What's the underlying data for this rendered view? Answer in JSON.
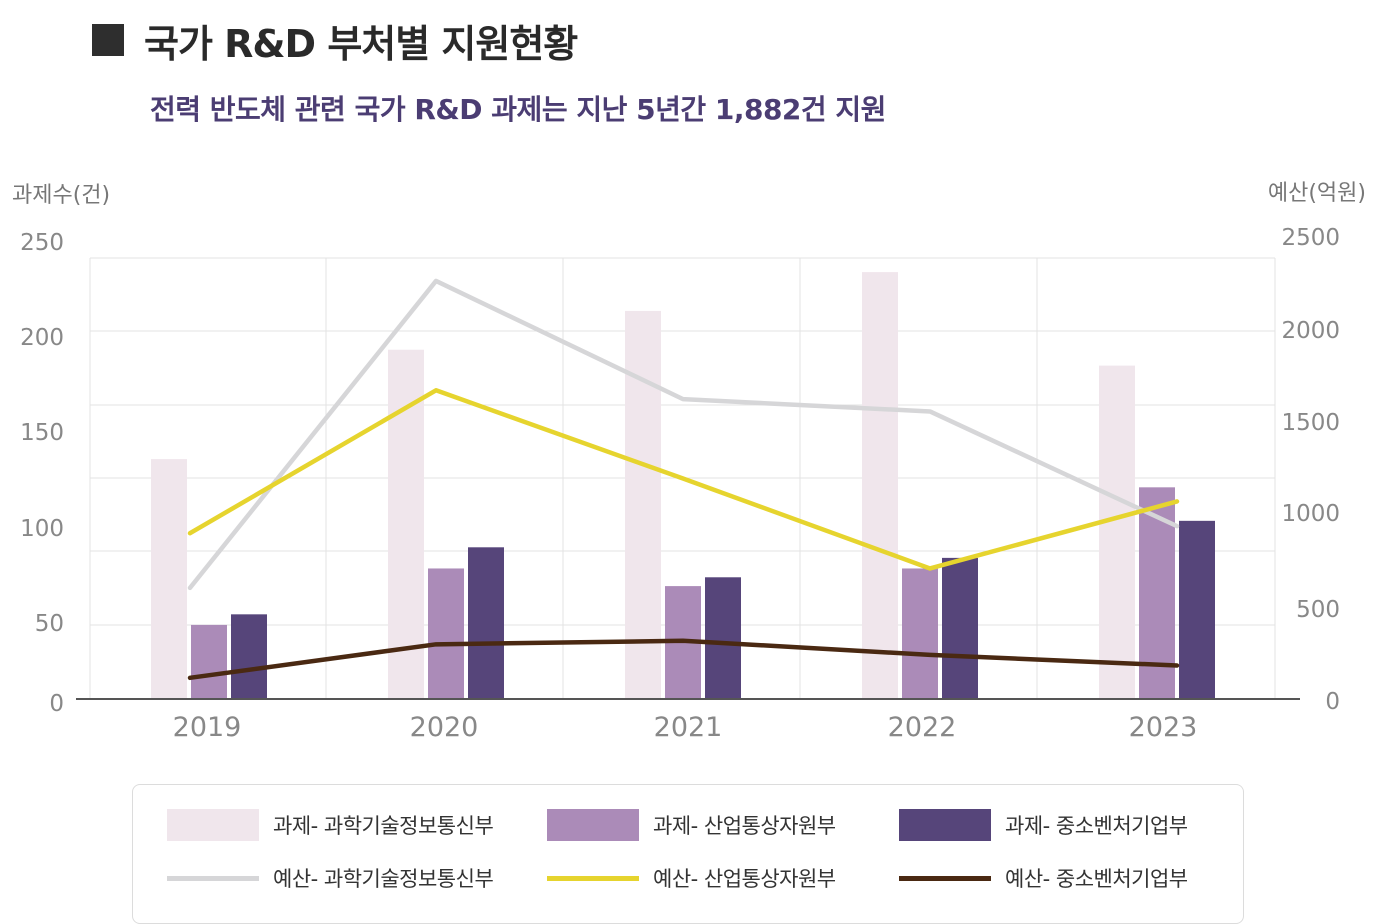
{
  "title": "국가 R&D 부처별 지원현황",
  "subtitle": "전력 반도체 관련 국가 R&D 과제는 지난 5년간 1,882건 지원",
  "chart_data": {
    "type": "bar",
    "combo": "bar+line",
    "categories": [
      "2019",
      "2020",
      "2021",
      "2022",
      "2023"
    ],
    "left_axis": {
      "label": "과제수(건)",
      "ylim": [
        0,
        250
      ],
      "ticks": [
        "0",
        "50",
        "100",
        "150",
        "200",
        "250"
      ]
    },
    "right_axis": {
      "label": "예산(억원)",
      "ylim": [
        0,
        2500
      ],
      "ticks": [
        "0",
        "500",
        "1000",
        "1500",
        "2000",
        "2500"
      ]
    },
    "bar_series": [
      {
        "name": "과제- 과학기술정보통신부",
        "color": "#f0e6ec",
        "values": [
          136,
          198,
          220,
          242,
          189
        ]
      },
      {
        "name": "과제- 산업통상자원부",
        "color": "#ab8bb8",
        "values": [
          42,
          74,
          64,
          74,
          120
        ]
      },
      {
        "name": "과제- 중소벤처기업부",
        "color": "#56457a",
        "values": [
          48,
          86,
          69,
          80,
          101
        ]
      }
    ],
    "line_series": [
      {
        "name": "예산- 과학기술정보통신부",
        "color": "#d6d6d8",
        "values": [
          630,
          2370,
          1700,
          1630,
          980
        ]
      },
      {
        "name": "예산- 산업통상자원부",
        "color": "#e6d42e",
        "values": [
          940,
          1750,
          1250,
          740,
          1120
        ]
      },
      {
        "name": "예산- 중소벤처기업부",
        "color": "#4a2912",
        "values": [
          120,
          310,
          330,
          250,
          190
        ]
      }
    ],
    "grid": true,
    "legend_position": "bottom"
  },
  "legend": [
    {
      "label": "과제- 과학기술정보통신부",
      "kind": "bar",
      "color": "#f0e6ec"
    },
    {
      "label": "과제- 산업통상자원부",
      "kind": "bar",
      "color": "#ab8bb8"
    },
    {
      "label": "과제- 중소벤처기업부",
      "kind": "bar",
      "color": "#56457a"
    },
    {
      "label": "예산- 과학기술정보통신부",
      "kind": "line",
      "color": "#d6d6d8"
    },
    {
      "label": "예산- 산업통상자원부",
      "kind": "line",
      "color": "#e6d42e"
    },
    {
      "label": "예산- 중소벤처기업부",
      "kind": "line",
      "color": "#4a2912"
    }
  ]
}
